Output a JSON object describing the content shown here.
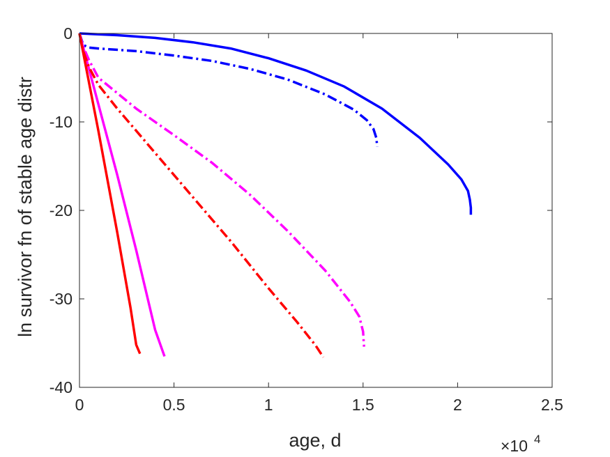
{
  "chart_data": {
    "type": "line",
    "xlabel": "age, d",
    "ylabel": "ln survivor fn of stable age distr",
    "x_multiplier_label": "×10",
    "x_multiplier_exponent": "4",
    "xlim": [
      0,
      2.5
    ],
    "ylim": [
      -40,
      0
    ],
    "xticks": [
      0,
      0.5,
      1,
      1.5,
      2,
      2.5
    ],
    "xtick_labels": [
      "0",
      "0.5",
      "1",
      "1.5",
      "2",
      "2.5"
    ],
    "yticks": [
      0,
      -10,
      -20,
      -30,
      -40
    ],
    "ytick_labels": [
      "0",
      "-10",
      "-20",
      "-30",
      "-40"
    ],
    "grid": false,
    "series": [
      {
        "color": "#0000ff",
        "dash": "solid",
        "x": [
          0,
          0.2,
          0.4,
          0.6,
          0.8,
          1.0,
          1.2,
          1.4,
          1.6,
          1.8,
          1.95,
          2.02,
          2.055,
          2.065,
          2.07,
          2.07
        ],
        "y": [
          0,
          -0.2,
          -0.5,
          -1.0,
          -1.7,
          -2.8,
          -4.2,
          -6.0,
          -8.5,
          -11.8,
          -14.8,
          -16.5,
          -17.8,
          -18.8,
          -19.7,
          -20.5
        ]
      },
      {
        "color": "#0000ff",
        "dash": "dashdot",
        "x": [
          0,
          0.02,
          0.05,
          0.1,
          0.3,
          0.5,
          0.7,
          0.9,
          1.1,
          1.3,
          1.45,
          1.52,
          1.555,
          1.57,
          1.575
        ],
        "y": [
          0,
          -1.3,
          -1.6,
          -1.7,
          -2.0,
          -2.5,
          -3.1,
          -4.0,
          -5.2,
          -6.9,
          -8.6,
          -9.8,
          -10.8,
          -11.8,
          -12.8
        ]
      },
      {
        "color": "#ff00ff",
        "dash": "solid",
        "x": [
          0,
          0.1,
          0.2,
          0.3,
          0.4,
          0.45
        ],
        "y": [
          0,
          -8.0,
          -16.0,
          -24.5,
          -33.5,
          -36.5
        ]
      },
      {
        "color": "#ff00ff",
        "dash": "dashdot",
        "x": [
          0,
          0.02,
          0.05,
          0.1,
          0.3,
          0.5,
          0.7,
          0.9,
          1.1,
          1.3,
          1.43,
          1.48,
          1.5,
          1.505
        ],
        "y": [
          0,
          -1.5,
          -3.0,
          -5.0,
          -8.5,
          -11.5,
          -14.6,
          -18.2,
          -22.3,
          -26.8,
          -30.3,
          -32.0,
          -33.7,
          -35.4
        ]
      },
      {
        "color": "#ff0000",
        "dash": "solid",
        "x": [
          0,
          0.1,
          0.2,
          0.27,
          0.3,
          0.32
        ],
        "y": [
          0,
          -11.0,
          -22.5,
          -31.0,
          -35.2,
          -36.2
        ]
      },
      {
        "color": "#ff0000",
        "dash": "dashdot",
        "x": [
          0,
          0.02,
          0.05,
          0.1,
          0.2,
          0.4,
          0.6,
          0.8,
          1.0,
          1.15,
          1.25,
          1.29
        ],
        "y": [
          0,
          -2.0,
          -3.8,
          -5.8,
          -8.5,
          -13.5,
          -18.5,
          -23.5,
          -28.8,
          -32.6,
          -35.3,
          -36.6
        ]
      }
    ]
  }
}
